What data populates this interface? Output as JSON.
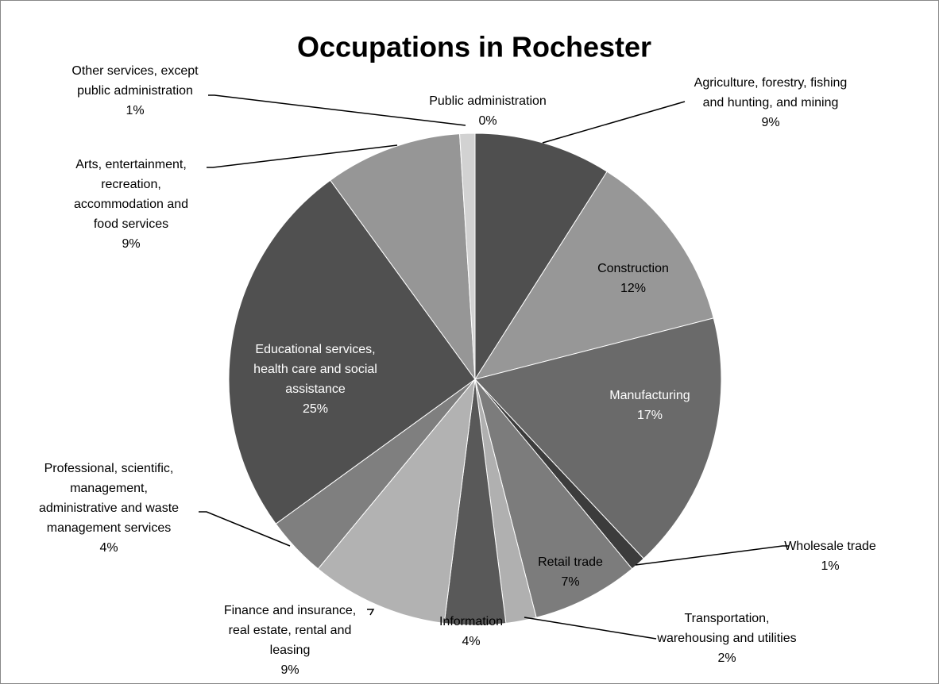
{
  "chart_data": {
    "type": "pie",
    "title": "Occupations in Rochester",
    "categories": [
      "Agriculture, forestry, fishing and hunting, and mining",
      "Construction",
      "Manufacturing",
      "Wholesale trade",
      "Retail trade",
      "Transportation, warehousing and utilities",
      "Information",
      "Finance and insurance, real estate, rental and leasing",
      "Professional, scientific, management, administrative and waste management services",
      "Educational services, health care and social assistance",
      "Arts, entertainment, recreation, accommodation and food services",
      "Other services, except public administration",
      "Public administration"
    ],
    "values": [
      9,
      12,
      17,
      1,
      7,
      2,
      4,
      9,
      4,
      25,
      9,
      1,
      0
    ],
    "value_labels": [
      "9%",
      "12%",
      "17%",
      "1%",
      "7%",
      "2%",
      "4%",
      "9%",
      "4%",
      "25%",
      "9%",
      "1%",
      "0%"
    ],
    "colors": [
      "#4f4f4f",
      "#979797",
      "#6a6a6a",
      "#3c3c3c",
      "#7c7c7c",
      "#b0b0b0",
      "#595959",
      "#b2b2b2",
      "#7f7f7f",
      "#505050",
      "#969696",
      "#d2d2d2",
      "#e6e6e6"
    ]
  }
}
